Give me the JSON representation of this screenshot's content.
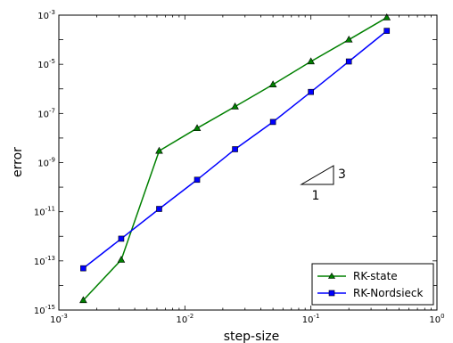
{
  "chart_data": {
    "type": "line",
    "xlabel": "step-size",
    "ylabel": "error",
    "xscale": "log",
    "yscale": "log",
    "xlim": [
      0.001,
      1
    ],
    "ylim": [
      1e-15,
      0.001
    ],
    "x_ticks": [
      {
        "base": "10",
        "exp": "-3",
        "value": 0.001
      },
      {
        "base": "10",
        "exp": "-2",
        "value": 0.01
      },
      {
        "base": "10",
        "exp": "-1",
        "value": 0.1
      },
      {
        "base": "10",
        "exp": "0",
        "value": 1
      }
    ],
    "y_ticks": [
      {
        "base": "10",
        "exp": "-15",
        "value": 1e-15
      },
      {
        "base": "10",
        "exp": "-13",
        "value": 1e-13
      },
      {
        "base": "10",
        "exp": "-11",
        "value": 1e-11
      },
      {
        "base": "10",
        "exp": "-9",
        "value": 1e-09
      },
      {
        "base": "10",
        "exp": "-7",
        "value": 1e-07
      },
      {
        "base": "10",
        "exp": "-5",
        "value": 1e-05
      },
      {
        "base": "10",
        "exp": "-3",
        "value": 0.001
      }
    ],
    "grid": false,
    "legend_position": "bottom-right",
    "series": [
      {
        "name": "RK-state",
        "color": "#008000",
        "marker": "triangle",
        "x": [
          0.0015625,
          0.003125,
          0.00625,
          0.0125,
          0.025,
          0.05,
          0.1,
          0.2,
          0.4
        ],
        "y": [
          2.5e-15,
          1.1e-13,
          3e-09,
          2.5e-08,
          1.9e-07,
          1.5e-06,
          1.3e-05,
          0.0001,
          0.0008
        ]
      },
      {
        "name": "RK-Nordsieck",
        "color": "#0000ff",
        "marker": "square",
        "x": [
          0.0015625,
          0.003125,
          0.00625,
          0.0125,
          0.025,
          0.05,
          0.1,
          0.2,
          0.4
        ],
        "y": [
          5e-14,
          8e-13,
          1.3e-11,
          2e-10,
          3.5e-09,
          4.5e-08,
          7.5e-07,
          1.3e-05,
          0.00023
        ]
      }
    ],
    "annotation": {
      "type": "slope-triangle",
      "run_label": "1",
      "rise_label": "3"
    }
  }
}
